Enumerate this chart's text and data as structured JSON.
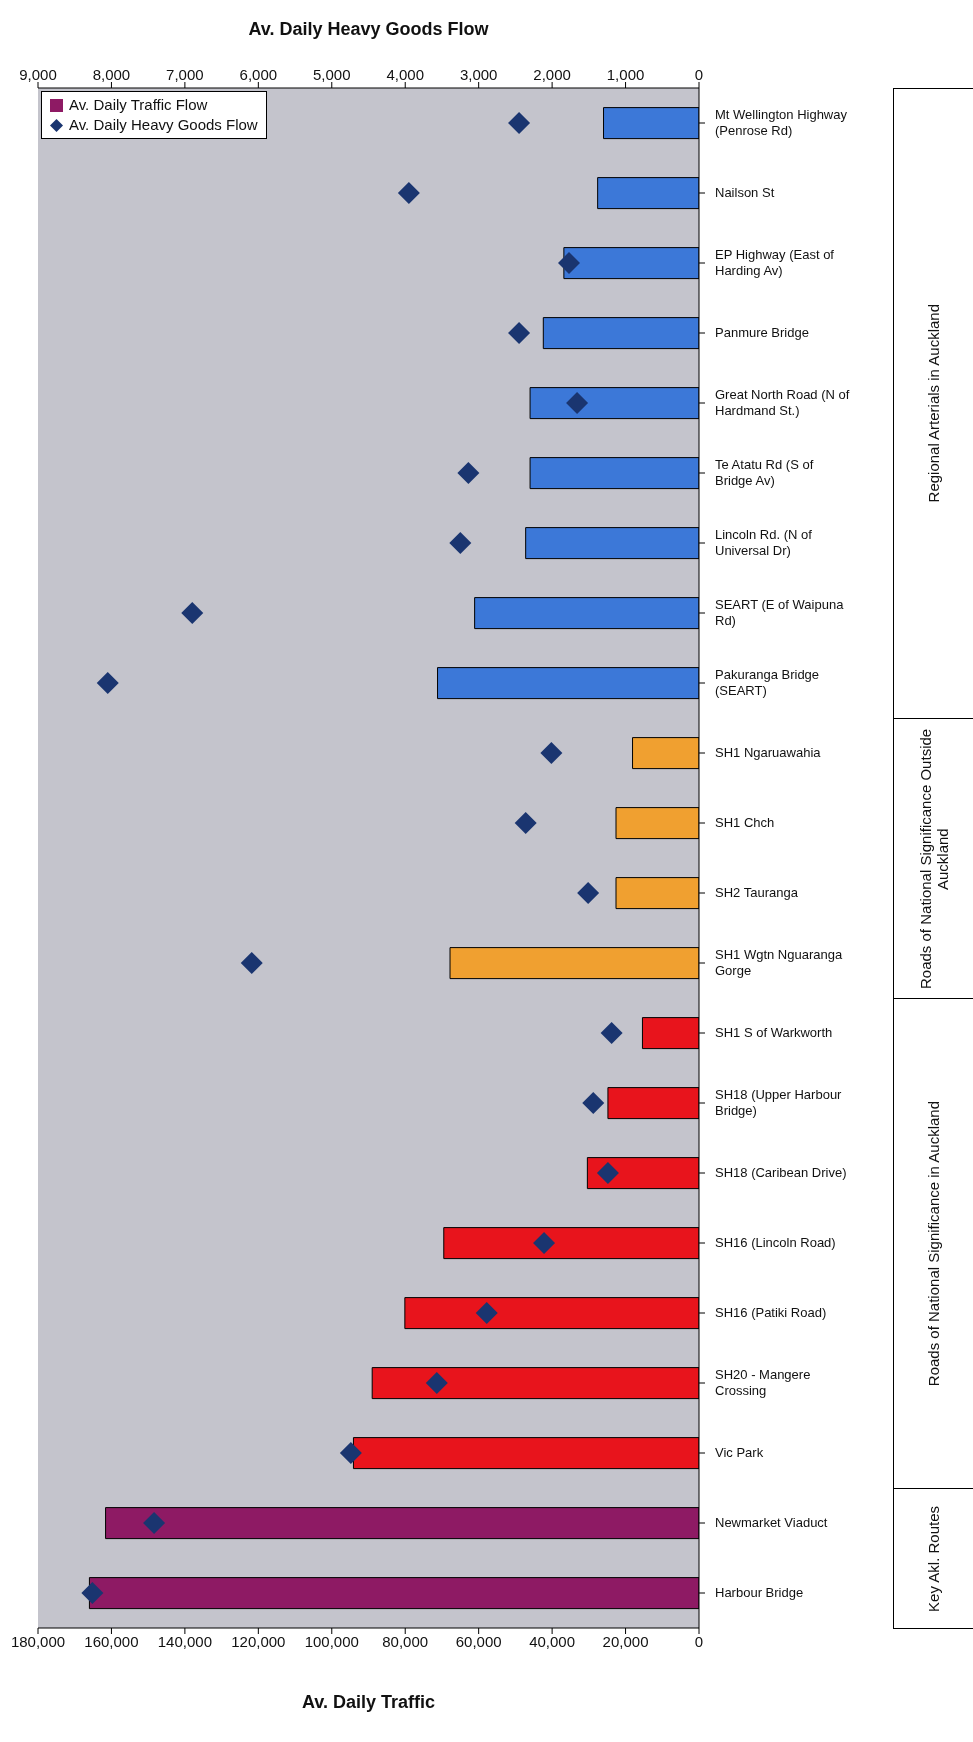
{
  "chart_data": {
    "type": "bar",
    "orientation": "horizontal",
    "categories": [
      "Mt Wellington Highway (Penrose Rd)",
      "Nailson St",
      "EP Highway (East of Harding Av)",
      "Panmure Bridge",
      "Great North Road (N of Hardmand St.)",
      "Te Atatu Rd (S of Bridge Av)",
      "Lincoln Rd. (N of Universal Dr)",
      "SEART (E of Waipuna Rd)",
      "Pakuranga Bridge (SEART)",
      "SH1 Ngaruawahia",
      "SH1 Chch",
      "SH2 Tauranga",
      "SH1 Wgtn Nguaranga Gorge",
      "SH1 S of Warkworth",
      "SH18 (Upper Harbour Bridge)",
      "SH18 (Caribean Drive)",
      "SH16 (Lincoln Road)",
      "SH16 (Patiki Road)",
      "SH20 - Mangere Crossing",
      "Vic Park",
      "Newmarket Viaduct",
      "Harbour Bridge"
    ],
    "series": [
      {
        "name": "Av. Daily Traffic Flow",
        "type": "bar",
        "color": "#8e1a64",
        "colors": [
          "#3c78d8",
          "#3c78d8",
          "#3c78d8",
          "#3c78d8",
          "#3c78d8",
          "#3c78d8",
          "#3c78d8",
          "#3c78d8",
          "#3c78d8",
          "#f0a030",
          "#f0a030",
          "#f0a030",
          "#f0a030",
          "#e8141c",
          "#e8141c",
          "#e8141c",
          "#e8141c",
          "#e8141c",
          "#e8141c",
          "#e8141c",
          "#8e1a64",
          "#8e1a64"
        ],
        "values": [
          26000,
          27600,
          36800,
          42400,
          46000,
          46000,
          47200,
          61100,
          71200,
          18100,
          22600,
          22600,
          67800,
          15400,
          24800,
          30400,
          69500,
          80100,
          89000,
          94100,
          161600,
          166000
        ]
      },
      {
        "name": "Av. Daily Heavy Goods Flow",
        "type": "scatter",
        "axis": "x2",
        "color": "#1a3570",
        "marker": "diamond",
        "values": [
          2450,
          3950,
          1770,
          2450,
          1660,
          3140,
          3250,
          6900,
          8050,
          2010,
          2360,
          1510,
          6090,
          1190,
          1440,
          1240,
          2110,
          2890,
          3570,
          4740,
          7420,
          8260
        ]
      }
    ],
    "xlabel": "Av. Daily Traffic",
    "x2label": "Av. Daily Heavy Goods Flow",
    "xlim": [
      180000,
      0
    ],
    "xticks": [
      0,
      {
        "value": 20000,
        "label": "20,000"
      },
      {
        "value": 40000,
        "label": "40,000"
      },
      {
        "value": 60000,
        "label": "60,000"
      },
      {
        "value": 80000,
        "label": "80,000"
      },
      {
        "value": 100000,
        "label": "100,000"
      },
      {
        "value": 120000,
        "label": "120,000"
      },
      {
        "value": 140000,
        "label": "140,000"
      },
      {
        "value": 160000,
        "label": "160,000"
      },
      {
        "value": 180000,
        "label": "180,000"
      }
    ],
    "x2lim": [
      9000,
      0
    ],
    "x2ticks": [
      0,
      {
        "value": 1000,
        "label": "1,000"
      },
      {
        "value": 2000,
        "label": "2,000"
      },
      {
        "value": 3000,
        "label": "3,000"
      },
      {
        "value": 4000,
        "label": "4,000"
      },
      {
        "value": 5000,
        "label": "5,000"
      },
      {
        "value": 6000,
        "label": "6,000"
      },
      {
        "value": 7000,
        "label": "7,000"
      },
      {
        "value": 8000,
        "label": "8,000"
      },
      {
        "value": 9000,
        "label": "9,000"
      }
    ],
    "legend": "top left",
    "annotations": [
      "Regional Arterials in Auckland",
      "Roads of National Significance Outside Auckland",
      "Roads of National Significance in Auckland",
      "Key Akl. Routes"
    ]
  }
}
